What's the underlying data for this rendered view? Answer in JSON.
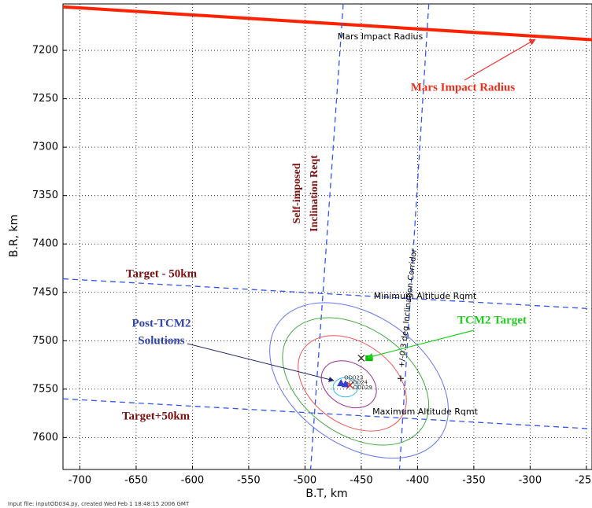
{
  "chart_data": {
    "type": "line",
    "xlabel": "B.T, km",
    "ylabel": "B.R, km",
    "footer": "Input file: inputOD034.py, created Wed Feb  1 18:48:15 2006 GMT",
    "xlim": [
      -715,
      -245
    ],
    "ylim": [
      7152,
      7633
    ],
    "y_inverted": true,
    "grid": true,
    "xticks": [
      -700,
      -650,
      -600,
      -550,
      -500,
      -450,
      -400,
      -350,
      -300,
      -250
    ],
    "yticks": [
      7200,
      7250,
      7300,
      7350,
      7400,
      7450,
      7500,
      7550,
      7600
    ],
    "series": [
      {
        "color": "#ff2200",
        "width": 4,
        "dashed": false,
        "x": [
          -715,
          -245
        ],
        "y": [
          7155,
          7189
        ]
      },
      {
        "color": "#3355ee",
        "width": 1.3,
        "dashed": true,
        "x": [
          -466,
          -495
        ],
        "y": [
          7152,
          7633
        ]
      },
      {
        "color": "#3355ee",
        "width": 1.3,
        "dashed": true,
        "x": [
          -390,
          -416
        ],
        "y": [
          7152,
          7633
        ]
      },
      {
        "color": "#3355ee",
        "width": 1.3,
        "dashed": true,
        "x": [
          -715,
          -245
        ],
        "y": [
          7436,
          7467
        ]
      },
      {
        "color": "#3355ee",
        "width": 1.3,
        "dashed": true,
        "x": [
          -715,
          -245
        ],
        "y": [
          7560,
          7591
        ]
      }
    ],
    "ellipses": [
      {
        "color": "#6677ee",
        "cx": -452,
        "cy": 7541,
        "rx": 88,
        "ry": 67,
        "angle": 35
      },
      {
        "color": "#44aa44",
        "cx": -455,
        "cy": 7542,
        "rx": 72,
        "ry": 55,
        "angle": 35
      },
      {
        "color": "#ee5555",
        "cx": -458,
        "cy": 7544,
        "rx": 53,
        "ry": 42,
        "angle": 35
      },
      {
        "color": "#993399",
        "cx": -461,
        "cy": 7545,
        "rx": 26,
        "ry": 22,
        "angle": 30
      },
      {
        "color": "#33bbee",
        "cx": -464,
        "cy": 7548,
        "rx": 11,
        "ry": 10,
        "angle": 0
      }
    ],
    "points": [
      {
        "symbol": "x",
        "color": "#333333",
        "x": -450,
        "y": 7518
      },
      {
        "symbol": "square",
        "color": "#00bb00",
        "x": -443,
        "y": 7518
      },
      {
        "symbol": "plus",
        "color": "#333333",
        "x": -415,
        "y": 7539
      },
      {
        "symbol": "triangle",
        "color": "#3344cc",
        "x": -468,
        "y": 7544,
        "label": "OD023"
      },
      {
        "symbol": "triangle",
        "color": "#3344cc",
        "x": -464,
        "y": 7545,
        "label": "OD024"
      },
      {
        "symbol": "x",
        "color": "#cc2222",
        "x": -460,
        "y": 7546,
        "label": "OD029"
      }
    ],
    "annotations": [
      {
        "text": "Mars Impact Radius",
        "color": "#000000"
      },
      {
        "text": "Mars Impact Radius",
        "color": "#e8301c"
      },
      {
        "text": "Self-imposed",
        "color": "#7a1010"
      },
      {
        "text": "Inclination Reqt",
        "color": "#7a1010"
      },
      {
        "text": "+/-0.3 deg Inclination Corridor",
        "color": "#000000"
      },
      {
        "text": "Minimum Altitude Rqmt",
        "color": "#000000"
      },
      {
        "text": "Maximum Altitude Rqmt",
        "color": "#000000"
      },
      {
        "text": "Target - 50km",
        "color": "#7a1010"
      },
      {
        "text": "Target+50km",
        "color": "#7a1010"
      },
      {
        "text": "TCM2 Target",
        "color": "#22cc22"
      },
      {
        "text": "Post-TCM2",
        "color": "#3344aa"
      },
      {
        "text": "Solutions",
        "color": "#3344aa"
      }
    ]
  }
}
